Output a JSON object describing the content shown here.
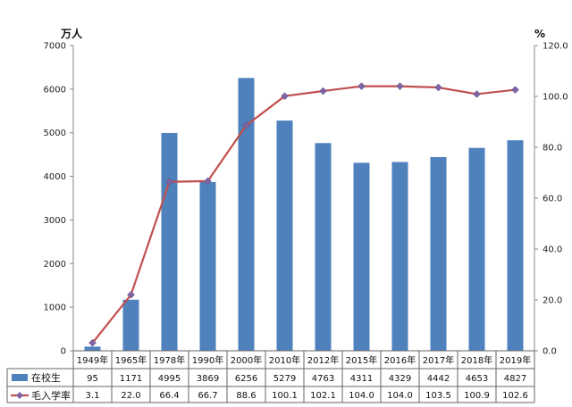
{
  "chart_data": {
    "type": "bar",
    "categories": [
      "1949年",
      "1965年",
      "1978年",
      "1990年",
      "2000年",
      "2010年",
      "2012年",
      "2015年",
      "2016年",
      "2017年",
      "2018年",
      "2019年"
    ],
    "left_axis": {
      "unit": "万人",
      "ylim": [
        0,
        7000
      ],
      "ticks": [
        "0",
        "1000",
        "2000",
        "3000",
        "4000",
        "5000",
        "6000",
        "7000"
      ]
    },
    "right_axis": {
      "unit": "%",
      "ylim": [
        0,
        120
      ],
      "ticks": [
        "0.0",
        "20.0",
        "40.0",
        "60.0",
        "80.0",
        "100.0",
        "120.0"
      ]
    },
    "series": [
      {
        "name": "在校生",
        "type": "bar",
        "axis": "left",
        "color": "#4f81bd",
        "values": [
          95,
          1171,
          4995,
          3869,
          6256,
          5279,
          4763,
          4311,
          4329,
          4442,
          4653,
          4827
        ],
        "labels": [
          "95",
          "1171",
          "4995",
          "3869",
          "6256",
          "5279",
          "4763",
          "4311",
          "4329",
          "4442",
          "4653",
          "4827"
        ]
      },
      {
        "name": "毛入学率",
        "type": "line",
        "axis": "right",
        "color": "#c0504d",
        "marker_color": "#8064a2",
        "values": [
          3.1,
          22.0,
          66.4,
          66.7,
          88.6,
          100.1,
          102.1,
          104.0,
          104.0,
          103.5,
          100.9,
          102.6
        ],
        "labels": [
          "3.1",
          "22.0",
          "66.4",
          "66.7",
          "88.6",
          "100.1",
          "102.1",
          "104.0",
          "104.0",
          "103.5",
          "100.9",
          "102.6"
        ]
      }
    ],
    "grid": false,
    "legend": "data-table-below"
  }
}
